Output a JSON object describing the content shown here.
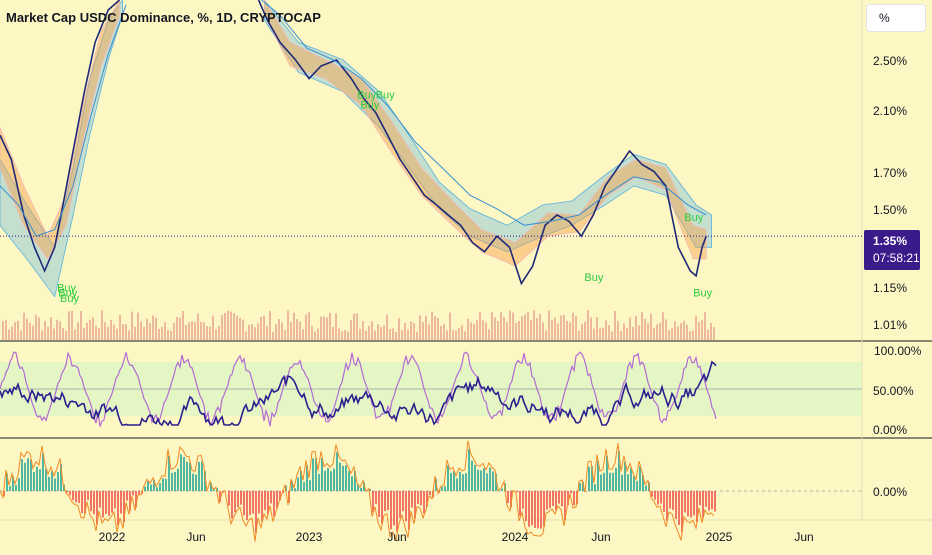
{
  "title": "Market Cap USDC Dominance, %, 1D, CRYPTOCAP",
  "unit_button": "%",
  "price_tag": {
    "value": "1.35%",
    "countdown": "07:58:21",
    "color": "#3b1a8a"
  },
  "colors": {
    "background": "#fdf7c3",
    "price_line": "#1e2a78",
    "cloud": "#5ab2e0",
    "ribbon_warm": "#f6a04a",
    "ribbon_green": "#6cc070",
    "buy_label": "#2ecc40",
    "volume": "#d96a6a",
    "rsi_main": "#2b1f8f",
    "rsi_signal": "#b36ad4",
    "hist_pos": "#26a69a",
    "hist_neg": "#ef5350",
    "osc_line": "#f08a24"
  },
  "y_axis_main": [
    "2.50%",
    "2.10%",
    "1.70%",
    "1.50%",
    "1.15%",
    "1.01%"
  ],
  "y_axis_rsi": [
    "100.00%",
    "50.00%",
    "0.00%"
  ],
  "y_axis_macd": [
    "0.00%"
  ],
  "x_axis": [
    "2022",
    "Jun",
    "2023",
    "Jun",
    "2024",
    "Jun",
    "2025",
    "Jun"
  ],
  "annotations": [
    "Buy",
    "Buy",
    "Buy",
    "Buy",
    "Buy",
    "Buy",
    "Buy",
    "Buy",
    "Buy"
  ],
  "chart_data": {
    "type": "line",
    "title": "Market Cap USDC Dominance, %, 1D, CRYPTOCAP",
    "scale": "log",
    "ylim": [
      0.95,
      3.0
    ],
    "x_range": [
      "2021-10-01",
      "2025-09-20"
    ],
    "current_value": 1.35,
    "series": [
      {
        "values": [
          [
            "2021-10-01",
            1.9
          ],
          [
            "2021-10-20",
            1.75
          ],
          [
            "2021-11-10",
            1.45
          ],
          [
            "2021-11-28",
            1.3
          ],
          [
            "2021-12-15",
            1.2
          ],
          [
            "2022-01-01",
            1.3
          ],
          [
            "2022-01-15",
            1.5
          ],
          [
            "2022-02-01",
            1.8
          ],
          [
            "2022-02-20",
            2.2
          ],
          [
            "2022-03-10",
            2.6
          ],
          [
            "2022-04-01",
            2.9
          ],
          [
            "2022-04-20",
            3.0
          ],
          [
            "2022-12-10",
            3.0
          ],
          [
            "2022-12-25",
            2.8
          ],
          [
            "2023-01-15",
            2.6
          ],
          [
            "2023-02-10",
            2.45
          ],
          [
            "2023-03-05",
            2.3
          ],
          [
            "2023-03-25",
            2.4
          ],
          [
            "2023-04-20",
            2.45
          ],
          [
            "2023-05-15",
            2.3
          ],
          [
            "2023-06-05",
            2.15
          ],
          [
            "2023-06-25",
            2.05
          ],
          [
            "2023-07-15",
            1.9
          ],
          [
            "2023-08-05",
            1.75
          ],
          [
            "2023-08-25",
            1.65
          ],
          [
            "2023-09-15",
            1.55
          ],
          [
            "2023-10-05",
            1.5
          ],
          [
            "2023-10-25",
            1.45
          ],
          [
            "2023-11-15",
            1.4
          ],
          [
            "2023-12-05",
            1.32
          ],
          [
            "2023-12-25",
            1.28
          ],
          [
            "2024-01-15",
            1.35
          ],
          [
            "2024-02-05",
            1.3
          ],
          [
            "2024-02-25",
            1.15
          ],
          [
            "2024-03-15",
            1.22
          ],
          [
            "2024-04-05",
            1.4
          ],
          [
            "2024-04-25",
            1.45
          ],
          [
            "2024-05-15",
            1.42
          ],
          [
            "2024-06-05",
            1.35
          ],
          [
            "2024-06-25",
            1.45
          ],
          [
            "2024-07-15",
            1.6
          ],
          [
            "2024-08-05",
            1.7
          ],
          [
            "2024-08-25",
            1.8
          ],
          [
            "2024-09-15",
            1.72
          ],
          [
            "2024-10-05",
            1.68
          ],
          [
            "2024-10-25",
            1.6
          ],
          [
            "2024-11-15",
            1.3
          ],
          [
            "2024-12-05",
            1.2
          ],
          [
            "2024-12-15",
            1.18
          ],
          [
            "2024-12-25",
            1.3
          ],
          [
            "2025-01-01",
            1.35
          ]
        ]
      },
      {
        "values": [
          [
            "2021-10-01",
            1.6
          ],
          [
            "2021-11-01",
            1.5
          ],
          [
            "2021-12-01",
            1.35
          ],
          [
            "2022-01-01",
            1.38
          ],
          [
            "2022-02-01",
            1.6
          ],
          [
            "2022-03-01",
            2.0
          ],
          [
            "2022-04-01",
            2.5
          ],
          [
            "2022-05-01",
            2.95
          ],
          [
            "2022-12-15",
            3.0
          ],
          [
            "2023-01-15",
            2.85
          ],
          [
            "2023-03-01",
            2.55
          ],
          [
            "2023-04-15",
            2.45
          ],
          [
            "2023-06-01",
            2.3
          ],
          [
            "2023-07-15",
            2.1
          ],
          [
            "2023-09-01",
            1.85
          ],
          [
            "2023-10-15",
            1.7
          ],
          [
            "2023-12-01",
            1.55
          ],
          [
            "2024-01-15",
            1.48
          ],
          [
            "2024-03-01",
            1.4
          ],
          [
            "2024-04-15",
            1.42
          ],
          [
            "2024-06-01",
            1.45
          ],
          [
            "2024-07-15",
            1.55
          ],
          [
            "2024-09-01",
            1.65
          ],
          [
            "2024-10-15",
            1.62
          ],
          [
            "2024-12-01",
            1.5
          ],
          [
            "2025-01-01",
            1.45
          ]
        ]
      }
    ],
    "ribbon": [
      [
        "2021-10-01",
        1.7,
        1.95
      ],
      [
        "2021-11-10",
        1.4,
        1.6
      ],
      [
        "2021-12-20",
        1.25,
        1.35
      ],
      [
        "2022-01-20",
        1.4,
        1.55
      ],
      [
        "2022-02-20",
        1.9,
        2.15
      ],
      [
        "2022-03-20",
        2.4,
        2.7
      ],
      [
        "2022-04-20",
        2.85,
        3.0
      ],
      [
        "2022-12-20",
        2.85,
        3.0
      ],
      [
        "2023-02-01",
        2.4,
        2.6
      ],
      [
        "2023-04-01",
        2.3,
        2.45
      ],
      [
        "2023-06-01",
        2.1,
        2.3
      ],
      [
        "2023-07-20",
        1.8,
        2.0
      ],
      [
        "2023-09-10",
        1.55,
        1.7
      ],
      [
        "2023-11-01",
        1.4,
        1.52
      ],
      [
        "2023-12-20",
        1.28,
        1.38
      ],
      [
        "2024-02-15",
        1.22,
        1.32
      ],
      [
        "2024-04-10",
        1.35,
        1.46
      ],
      [
        "2024-06-01",
        1.37,
        1.45
      ],
      [
        "2024-07-20",
        1.55,
        1.65
      ],
      [
        "2024-09-05",
        1.65,
        1.75
      ],
      [
        "2024-10-25",
        1.58,
        1.7
      ],
      [
        "2024-12-10",
        1.25,
        1.4
      ],
      [
        "2025-01-01",
        1.25,
        1.38
      ]
    ],
    "cloud": [
      [
        "2021-10-01",
        1.4,
        1.75
      ],
      [
        "2021-11-15",
        1.25,
        1.5
      ],
      [
        "2022-01-01",
        1.1,
        1.3
      ],
      [
        "2022-02-01",
        1.45,
        1.7
      ],
      [
        "2022-03-01",
        1.9,
        2.3
      ],
      [
        "2022-04-01",
        2.45,
        2.8
      ],
      [
        "2022-04-25",
        2.85,
        3.0
      ],
      [
        "2022-12-20",
        2.8,
        3.0
      ],
      [
        "2023-02-15",
        2.35,
        2.6
      ],
      [
        "2023-05-01",
        2.2,
        2.45
      ],
      [
        "2023-07-01",
        1.95,
        2.2
      ],
      [
        "2023-08-20",
        1.7,
        1.9
      ],
      [
        "2023-10-10",
        1.48,
        1.62
      ],
      [
        "2023-12-01",
        1.35,
        1.48
      ],
      [
        "2024-02-01",
        1.28,
        1.4
      ],
      [
        "2024-04-01",
        1.35,
        1.5
      ],
      [
        "2024-05-20",
        1.4,
        1.52
      ],
      [
        "2024-07-15",
        1.5,
        1.66
      ],
      [
        "2024-09-01",
        1.6,
        1.78
      ],
      [
        "2024-10-25",
        1.55,
        1.72
      ],
      [
        "2024-12-15",
        1.3,
        1.5
      ],
      [
        "2025-01-10",
        1.3,
        1.45
      ]
    ],
    "buy_signals": [
      [
        "2022-01-05",
        1.12
      ],
      [
        "2022-01-07",
        1.1
      ],
      [
        "2022-01-10",
        1.08
      ],
      [
        "2023-05-25",
        2.15
      ],
      [
        "2023-05-30",
        2.08
      ],
      [
        "2023-06-25",
        2.15
      ],
      [
        "2024-06-10",
        1.16
      ],
      [
        "2024-11-25",
        1.42
      ],
      [
        "2024-12-10",
        1.1
      ]
    ]
  },
  "rsi_panel": {
    "range": [
      0,
      100
    ],
    "bands": [
      20,
      80
    ]
  },
  "macd_panel": {
    "zero_line": 0
  }
}
